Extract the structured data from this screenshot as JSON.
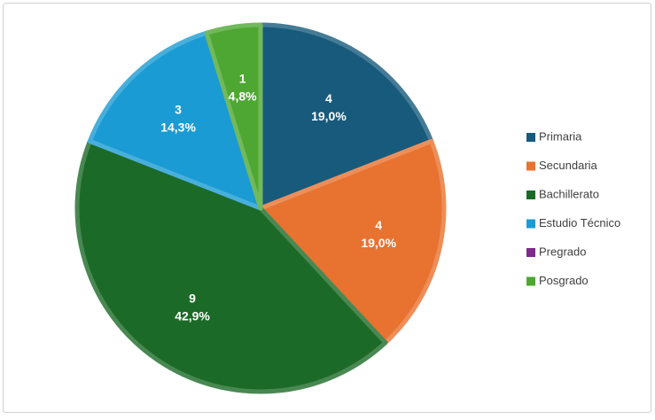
{
  "chart_data": {
    "type": "pie",
    "categories": [
      "Primaria",
      "Secundaria",
      "Bachillerato",
      "Estudio Técnico",
      "Pregrado",
      "Posgrado"
    ],
    "values": [
      4,
      4,
      9,
      3,
      0,
      1
    ],
    "percentages": [
      19.0,
      19.0,
      42.9,
      14.3,
      0,
      4.8
    ],
    "percentage_labels": [
      "19,0%",
      "19,0%",
      "42,9%",
      "14,3%",
      null,
      "4,8%"
    ],
    "colors": [
      "#175a7c",
      "#e8722f",
      "#1c6a27",
      "#1a9bd3",
      "#7d2a8c",
      "#4ea733"
    ],
    "legend": "right"
  }
}
